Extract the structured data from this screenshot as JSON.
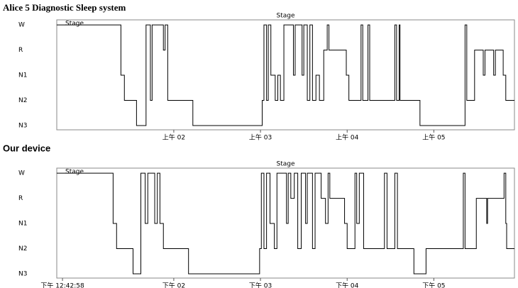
{
  "chart_data": [
    {
      "type": "step",
      "panel_title": "Alice 5 Diagnostic Sleep system",
      "title": "Stage",
      "x": [
        0.65,
        1.39,
        1.43,
        1.57,
        1.68,
        1.73,
        1.75,
        1.88,
        1.9,
        1.93,
        2.22,
        3.02,
        3.04,
        3.07,
        3.09,
        3.12,
        3.17,
        3.2,
        3.23,
        3.27,
        3.38,
        3.4,
        3.48,
        3.5,
        3.54,
        3.57,
        3.6,
        3.64,
        3.68,
        3.73,
        3.77,
        3.79,
        3.99,
        4.02,
        4.16,
        4.18,
        4.24,
        4.26,
        4.55,
        4.57,
        4.6,
        4.61,
        4.84,
        5.36,
        5.38,
        5.47,
        5.57,
        5.59,
        5.69,
        5.71,
        5.8,
        5.83,
        5.93
      ],
      "series": [
        {
          "name": "Stage",
          "color": "#000000",
          "values": [
            4,
            2,
            1,
            0,
            4,
            1,
            4,
            3,
            4,
            1,
            0,
            1,
            4,
            1,
            4,
            2,
            1,
            2,
            1,
            4,
            2,
            4,
            2,
            4,
            1,
            4,
            1,
            2,
            1,
            3,
            4,
            3,
            2,
            1,
            4,
            1,
            4,
            1,
            4,
            1,
            4,
            1,
            0,
            4,
            1,
            3,
            2,
            3,
            2,
            3,
            2,
            1,
            1
          ]
        }
      ],
      "xlim": [
        0.65,
        5.93
      ],
      "xticks": [
        {
          "value": 2,
          "label": "上午 02"
        },
        {
          "value": 3,
          "label": "上午 03"
        },
        {
          "value": 4,
          "label": "上午 04"
        },
        {
          "value": 5,
          "label": "上午 05"
        }
      ],
      "ylim": [
        -0.17,
        4.2
      ],
      "yticks": [
        {
          "value": 4,
          "label": "W"
        },
        {
          "value": 3,
          "label": "R"
        },
        {
          "value": 2,
          "label": "N1"
        },
        {
          "value": 1,
          "label": "N2"
        },
        {
          "value": 0,
          "label": "N3"
        }
      ],
      "legend": "top-left"
    },
    {
      "type": "step",
      "panel_title": "Our device",
      "title": "Stage",
      "x": [
        0.65,
        1.3,
        1.34,
        1.53,
        1.62,
        1.67,
        1.7,
        1.78,
        1.81,
        1.84,
        1.88,
        2.17,
        2.99,
        3.01,
        3.04,
        3.07,
        3.11,
        3.16,
        3.19,
        3.3,
        3.32,
        3.35,
        3.39,
        3.43,
        3.47,
        3.52,
        3.54,
        3.6,
        3.63,
        3.7,
        3.75,
        3.78,
        3.8,
        3.97,
        4.0,
        4.09,
        4.11,
        4.14,
        4.19,
        4.43,
        4.46,
        4.55,
        4.58,
        4.77,
        4.91,
        5.34,
        5.36,
        5.49,
        5.61,
        5.62,
        5.81,
        5.83,
        5.84,
        5.93
      ],
      "series": [
        {
          "name": "Stage",
          "color": "#000000",
          "values": [
            4,
            2,
            1,
            0,
            4,
            2,
            4,
            2,
            4,
            2,
            1,
            0,
            1,
            4,
            1,
            4,
            2,
            1,
            4,
            2,
            4,
            3,
            4,
            1,
            4,
            2,
            4,
            1,
            4,
            3,
            2,
            4,
            3,
            2,
            1,
            4,
            2,
            4,
            1,
            4,
            1,
            4,
            1,
            0,
            1,
            4,
            1,
            3,
            2,
            3,
            4,
            2,
            1,
            1
          ]
        }
      ],
      "xlim": [
        0.65,
        5.93
      ],
      "xticks": [
        {
          "value": 0.716,
          "label": "下午 12:42:58"
        },
        {
          "value": 2,
          "label": "下午 02"
        },
        {
          "value": 3,
          "label": "下午 03"
        },
        {
          "value": 4,
          "label": "下午 04"
        },
        {
          "value": 5,
          "label": "下午 05"
        }
      ],
      "ylim": [
        -0.17,
        4.2
      ],
      "yticks": [
        {
          "value": 4,
          "label": "W"
        },
        {
          "value": 3,
          "label": "R"
        },
        {
          "value": 2,
          "label": "N1"
        },
        {
          "value": 1,
          "label": "N2"
        },
        {
          "value": 0,
          "label": "N3"
        }
      ],
      "legend": "top-left"
    }
  ]
}
